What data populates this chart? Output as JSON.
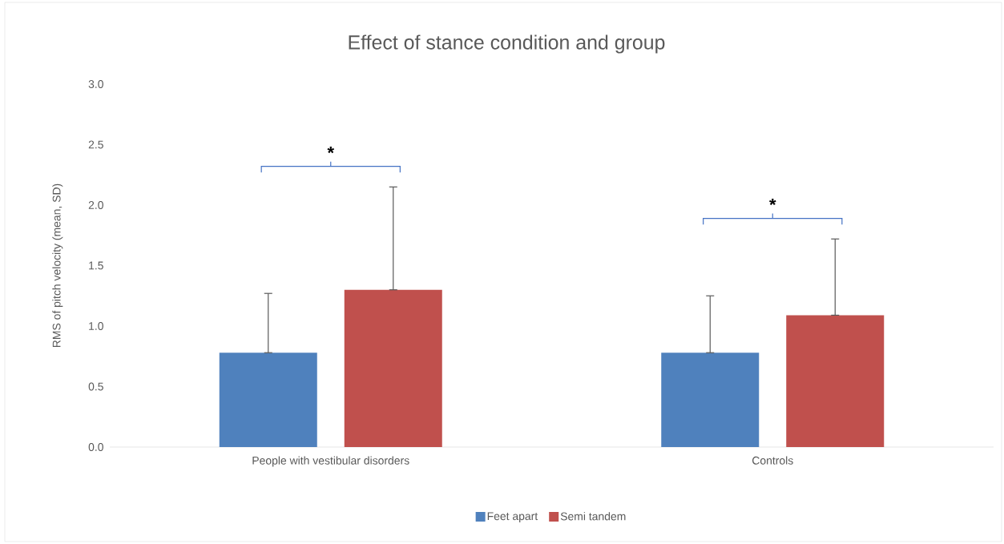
{
  "chart_data": {
    "type": "bar",
    "title": "Effect of stance condition and group",
    "ylabel": "RMS of pitch velocity (mean, SD)",
    "categories": [
      "People with vestibular disorders",
      "Controls"
    ],
    "series": [
      {
        "name": "Feet apart",
        "color": "#4f81bd",
        "values": [
          0.78,
          0.78
        ],
        "errors": [
          [
            0.78,
            1.27
          ],
          [
            0.78,
            1.25
          ]
        ]
      },
      {
        "name": "Semi tandem",
        "color": "#c0504d",
        "values": [
          1.3,
          1.09
        ],
        "errors": [
          [
            1.3,
            2.15
          ],
          [
            1.09,
            1.72
          ]
        ]
      }
    ],
    "ylim": [
      0,
      3
    ],
    "yticks": [
      {
        "value": 0,
        "label": "0.0"
      },
      {
        "value": 0.5,
        "label": "0.5"
      },
      {
        "value": 1,
        "label": "1.0"
      },
      {
        "value": 1.5,
        "label": "1.5"
      },
      {
        "value": 2,
        "label": "2.0"
      },
      {
        "value": 2.5,
        "label": "2.5"
      },
      {
        "value": 3,
        "label": "3.0"
      }
    ],
    "legend": "bottom",
    "annotations": [
      "*",
      "*"
    ]
  }
}
